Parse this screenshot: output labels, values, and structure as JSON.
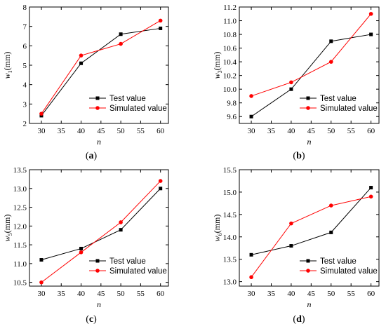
{
  "chart_data": [
    {
      "type": "line",
      "panel_label": "(a)",
      "ylabel_main": "w",
      "ylabel_sub": "1",
      "ylabel_unit": "(mm)",
      "xlabel": "n",
      "x": [
        30,
        40,
        50,
        60
      ],
      "xticks": [
        "30",
        "35",
        "40",
        "45",
        "50",
        "55",
        "60"
      ],
      "yticks": [
        "2",
        "3",
        "4",
        "5",
        "6",
        "7",
        "8"
      ],
      "xlim": [
        27,
        62
      ],
      "ylim": [
        2,
        8
      ],
      "legend_position": "bottom-right",
      "series": [
        {
          "name": "Test value",
          "color": "#000000",
          "marker": "square",
          "values": [
            2.4,
            5.1,
            6.6,
            6.9
          ]
        },
        {
          "name": "Simulated value",
          "color": "#ff0000",
          "marker": "circle",
          "values": [
            2.5,
            5.5,
            6.1,
            7.3
          ]
        }
      ]
    },
    {
      "type": "line",
      "panel_label": "(b)",
      "ylabel_main": "w",
      "ylabel_sub": "3",
      "ylabel_unit": "(mm)",
      "xlabel": "n",
      "x": [
        30,
        40,
        50,
        60
      ],
      "xticks": [
        "30",
        "35",
        "40",
        "45",
        "50",
        "55",
        "60"
      ],
      "yticks": [
        "9.6",
        "9.8",
        "10.0",
        "10.2",
        "10.4",
        "10.6",
        "10.8",
        "11.0",
        "11.2"
      ],
      "xlim": [
        27,
        62
      ],
      "ylim": [
        9.5,
        11.2
      ],
      "legend_position": "bottom-right",
      "series": [
        {
          "name": "Test value",
          "color": "#000000",
          "marker": "square",
          "values": [
            9.6,
            10.0,
            10.7,
            10.8
          ]
        },
        {
          "name": "Simulated value",
          "color": "#ff0000",
          "marker": "circle",
          "values": [
            9.9,
            10.1,
            10.4,
            11.1
          ]
        }
      ]
    },
    {
      "type": "line",
      "panel_label": "(c)",
      "ylabel_main": "w",
      "ylabel_sub": "5",
      "ylabel_unit": "(mm)",
      "xlabel": "n",
      "x": [
        30,
        40,
        50,
        60
      ],
      "xticks": [
        "30",
        "35",
        "40",
        "45",
        "50",
        "55",
        "60"
      ],
      "yticks": [
        "10.5",
        "11.0",
        "11.5",
        "12.0",
        "12.5",
        "13.0",
        "13.5"
      ],
      "xlim": [
        27,
        62
      ],
      "ylim": [
        10.4,
        13.5
      ],
      "legend_position": "bottom-right",
      "series": [
        {
          "name": "Test value",
          "color": "#000000",
          "marker": "square",
          "values": [
            11.1,
            11.4,
            11.9,
            13.0
          ]
        },
        {
          "name": "Simulated value",
          "color": "#ff0000",
          "marker": "circle",
          "values": [
            10.5,
            11.3,
            12.1,
            13.2
          ]
        }
      ]
    },
    {
      "type": "line",
      "panel_label": "(d)",
      "ylabel_main": "w",
      "ylabel_sub": "6",
      "ylabel_unit": "(mm)",
      "xlabel": "n",
      "x": [
        30,
        40,
        50,
        60
      ],
      "xticks": [
        "30",
        "35",
        "40",
        "45",
        "50",
        "55",
        "60"
      ],
      "yticks": [
        "13.0",
        "13.5",
        "14.0",
        "14.5",
        "15.0",
        "15.5"
      ],
      "xlim": [
        27,
        62
      ],
      "ylim": [
        12.9,
        15.5
      ],
      "legend_position": "bottom-right",
      "series": [
        {
          "name": "Test value",
          "color": "#000000",
          "marker": "square",
          "values": [
            13.6,
            13.8,
            14.1,
            15.1
          ]
        },
        {
          "name": "Simulated value",
          "color": "#ff0000",
          "marker": "circle",
          "values": [
            13.1,
            14.3,
            14.7,
            14.9
          ]
        }
      ]
    }
  ]
}
